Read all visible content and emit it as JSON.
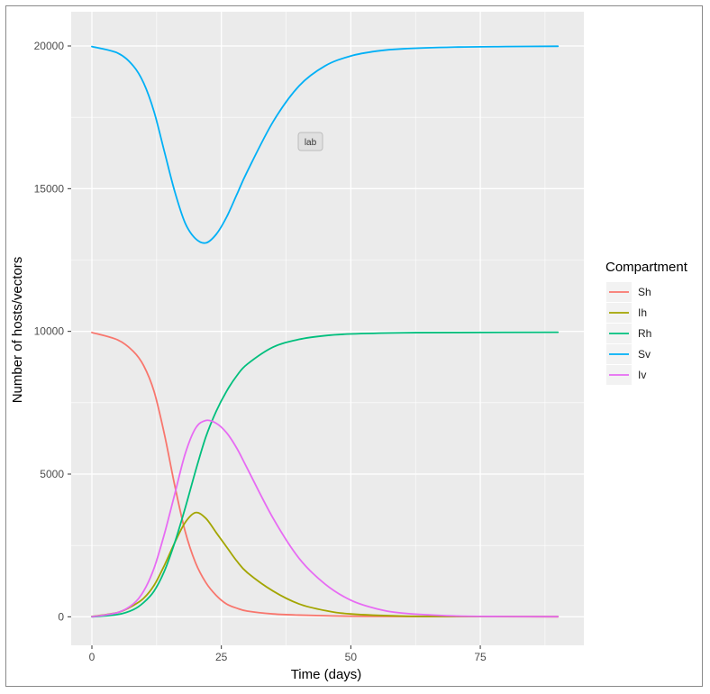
{
  "chart_data": {
    "type": "line",
    "title": "",
    "xlabel": "Time (days)",
    "ylabel": "Number of hosts/vectors",
    "xlim": [
      -4,
      95
    ],
    "ylim": [
      -1000,
      21200
    ],
    "xticks": [
      0,
      25,
      50,
      75
    ],
    "yticks": [
      0,
      5000,
      10000,
      15000,
      20000
    ],
    "x_tick_labels": [
      "0",
      "25",
      "50",
      "75"
    ],
    "y_tick_labels": [
      "0",
      "5000",
      "10000",
      "15000",
      "20000"
    ],
    "grid": true,
    "legend": {
      "title": "Compartment",
      "position": "right"
    },
    "annotation": "lab",
    "series": [
      {
        "name": "Sh",
        "color": "#F8766D",
        "x": [
          0,
          5,
          8,
          10,
          12,
          14,
          16,
          18,
          20,
          22,
          24,
          26,
          28,
          30,
          35,
          40,
          50,
          60,
          90
        ],
        "y": [
          9960,
          9700,
          9300,
          8800,
          7900,
          6400,
          4600,
          3000,
          1900,
          1200,
          750,
          450,
          300,
          200,
          100,
          60,
          20,
          10,
          5
        ]
      },
      {
        "name": "Ih",
        "color": "#A3A500",
        "x": [
          0,
          5,
          8,
          10,
          12,
          14,
          16,
          18,
          20,
          22,
          24,
          26,
          28,
          30,
          35,
          40,
          45,
          50,
          60,
          70,
          90
        ],
        "y": [
          10,
          150,
          400,
          650,
          1100,
          1800,
          2600,
          3300,
          3650,
          3450,
          2950,
          2450,
          1950,
          1550,
          900,
          450,
          220,
          100,
          25,
          10,
          5
        ]
      },
      {
        "name": "Rh",
        "color": "#00BF7D",
        "x": [
          0,
          5,
          8,
          10,
          12,
          14,
          16,
          18,
          20,
          22,
          24,
          26,
          28,
          30,
          35,
          40,
          45,
          50,
          60,
          70,
          90
        ],
        "y": [
          0,
          80,
          250,
          500,
          900,
          1600,
          2600,
          3800,
          5100,
          6300,
          7200,
          7900,
          8450,
          8850,
          9450,
          9720,
          9850,
          9910,
          9950,
          9960,
          9970
        ]
      },
      {
        "name": "Sv",
        "color": "#00B0F6",
        "x": [
          0,
          5,
          8,
          10,
          12,
          14,
          16,
          18,
          20,
          22,
          24,
          26,
          28,
          30,
          35,
          40,
          45,
          50,
          55,
          60,
          70,
          80,
          90
        ],
        "y": [
          19980,
          19750,
          19300,
          18700,
          17700,
          16300,
          14900,
          13800,
          13250,
          13100,
          13400,
          14000,
          14800,
          15600,
          17350,
          18600,
          19300,
          19650,
          19820,
          19900,
          19960,
          19980,
          19990
        ]
      },
      {
        "name": "Iv",
        "color": "#E76BF3",
        "x": [
          0,
          5,
          8,
          10,
          12,
          14,
          16,
          18,
          20,
          22,
          24,
          26,
          28,
          30,
          35,
          40,
          45,
          50,
          55,
          60,
          70,
          80,
          90
        ],
        "y": [
          0,
          150,
          450,
          900,
          1700,
          2900,
          4300,
          5700,
          6600,
          6880,
          6780,
          6450,
          5900,
          5200,
          3450,
          2050,
          1150,
          580,
          280,
          130,
          30,
          10,
          5
        ]
      }
    ]
  }
}
